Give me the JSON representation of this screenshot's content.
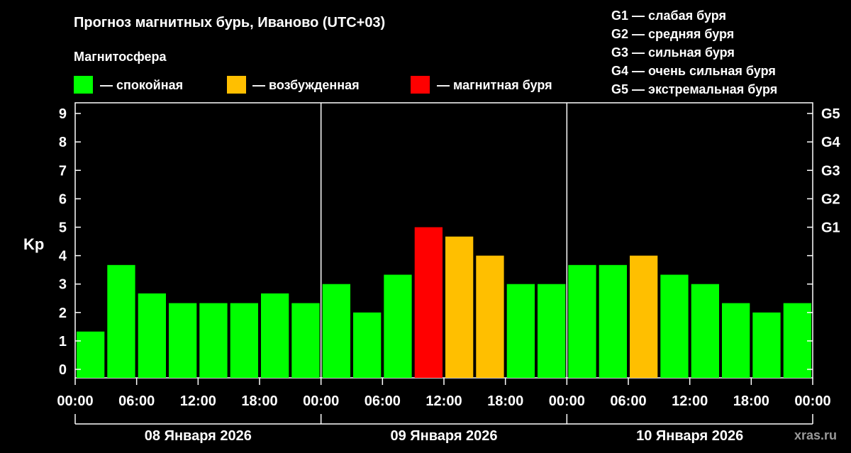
{
  "chart_data": {
    "type": "bar",
    "title": "Прогноз магнитных бурь, Иваново (UTC+03)",
    "ylabel": "Kp",
    "ylim": [
      0,
      9
    ],
    "y_ticks": [
      "0",
      "1",
      "2",
      "3",
      "4",
      "5",
      "6",
      "7",
      "8",
      "9"
    ],
    "g_ticks": [
      {
        "label": "G1",
        "kp": 5
      },
      {
        "label": "G2",
        "kp": 6
      },
      {
        "label": "G3",
        "kp": 7
      },
      {
        "label": "G4",
        "kp": 8
      },
      {
        "label": "G5",
        "kp": 9
      }
    ],
    "x_ticks": [
      "00:00",
      "06:00",
      "12:00",
      "18:00",
      "00:00",
      "06:00",
      "12:00",
      "18:00",
      "00:00",
      "06:00",
      "12:00",
      "18:00",
      "00:00"
    ],
    "days": [
      "08 Января 2026",
      "09 Января 2026",
      "10 Января 2026"
    ],
    "values": [
      1.33,
      3.67,
      2.67,
      2.33,
      2.33,
      2.33,
      2.67,
      2.33,
      3.0,
      2.0,
      3.33,
      5.0,
      4.67,
      4.0,
      3.0,
      3.0,
      3.67,
      3.67,
      4.0,
      3.33,
      3.0,
      2.33,
      2.0,
      2.33
    ],
    "status": [
      "calm",
      "calm",
      "calm",
      "calm",
      "calm",
      "calm",
      "calm",
      "calm",
      "calm",
      "calm",
      "calm",
      "storm",
      "excited",
      "excited",
      "calm",
      "calm",
      "calm",
      "calm",
      "excited",
      "calm",
      "calm",
      "calm",
      "calm",
      "calm"
    ],
    "grid": false
  },
  "legend": {
    "heading": "Магнитосфера",
    "items": [
      {
        "key": "calm",
        "label": "— спокойная",
        "color": "#00ff00"
      },
      {
        "key": "excited",
        "label": "— возбужденная",
        "color": "#ffbf00"
      },
      {
        "key": "storm",
        "label": "— магнитная буря",
        "color": "#ff0000"
      }
    ]
  },
  "g_legend": [
    "G1 — слабая буря",
    "G2 — средняя буря",
    "G3 — сильная буря",
    "G4 — очень сильная буря",
    "G5 — экстремальная буря"
  ],
  "watermark": "xras.ru"
}
